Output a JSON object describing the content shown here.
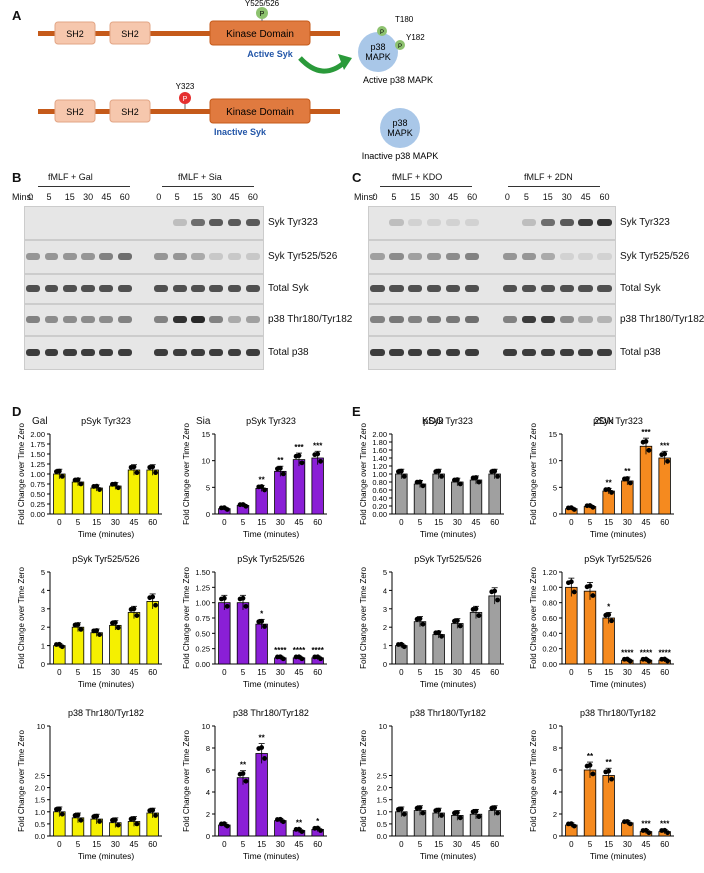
{
  "panel_labels": {
    "A": "A",
    "B": "B",
    "C": "C",
    "D": "D",
    "E": "E"
  },
  "diagram": {
    "active": {
      "sh2a": "SH2",
      "sh2b": "SH2",
      "kinase": "Kinase Domain",
      "site": "Y525/526",
      "p": "P",
      "name": "Active Syk"
    },
    "inactive": {
      "sh2a": "SH2",
      "sh2b": "SH2",
      "kinase": "Kinase Domain",
      "site": "Y323",
      "p": "P",
      "name": "Inactive Syk"
    },
    "p38_active": {
      "line1": "p38",
      "line2": "MAPK",
      "t": "T180",
      "y": "Y182",
      "p": "P",
      "name": "Active p38 MAPK"
    },
    "p38_inactive": {
      "line1": "p38",
      "line2": "MAPK",
      "name": "Inactive p38 MAPK"
    }
  },
  "blots": {
    "B": {
      "group1": "fMLF + Gal",
      "group2": "fMLF + Sia",
      "mins_label": "Mins:",
      "times": [
        "0",
        "5",
        "15",
        "30",
        "45",
        "60"
      ],
      "rows": [
        "Syk Tyr323",
        "Syk Tyr525/526",
        "Total Syk",
        "p38 Thr180/Tyr182",
        "Total p38"
      ]
    },
    "C": {
      "group1": "fMLF + KDO",
      "group2": "fMLF + 2DN",
      "mins_label": "Mins:",
      "times": [
        "0",
        "5",
        "15",
        "30",
        "45",
        "60"
      ],
      "rows": [
        "Syk Tyr323",
        "Syk Tyr525/526",
        "Total Syk",
        "p38 Thr180/Tyr182",
        "Total p38"
      ]
    }
  },
  "condition_titles": {
    "gal": "Gal",
    "sia": "Sia",
    "kdo": "KDO",
    "dn": "2DN"
  },
  "chart_data": [
    {
      "id": "D1",
      "type": "bar",
      "title": "pSyk Tyr323",
      "xlabel": "Time (minutes)",
      "ylabel": "Fold Change over Time Zero",
      "color": "#f5f000",
      "categories": [
        "0",
        "5",
        "15",
        "30",
        "45",
        "60"
      ],
      "values": [
        1.0,
        0.8,
        0.65,
        0.7,
        1.1,
        1.1
      ],
      "ylim": [
        0,
        2.0
      ],
      "yticks": [
        0.0,
        0.25,
        0.5,
        0.75,
        1.0,
        1.25,
        1.5,
        1.75,
        2.0
      ],
      "sig": [
        "",
        "",
        "",
        "",
        "",
        ""
      ]
    },
    {
      "id": "D2",
      "type": "bar",
      "title": "pSyk Tyr323",
      "xlabel": "Time (minutes)",
      "ylabel": "Fold Change over Time Zero",
      "color": "#8a1fd6",
      "categories": [
        "0",
        "5",
        "15",
        "30",
        "45",
        "60"
      ],
      "values": [
        1.0,
        1.6,
        4.8,
        8.0,
        10.2,
        10.5
      ],
      "ylim": [
        0,
        15
      ],
      "yticks": [
        0,
        5,
        10,
        15
      ],
      "sig": [
        "",
        "",
        "**",
        "**",
        "***",
        "***"
      ]
    },
    {
      "id": "D3",
      "type": "bar",
      "title": "pSyk Tyr525/526",
      "xlabel": "Time (minutes)",
      "ylabel": "Fold Change over Time Zero",
      "color": "#f5f000",
      "categories": [
        "0",
        "5",
        "15",
        "30",
        "45",
        "60"
      ],
      "values": [
        1.0,
        2.0,
        1.7,
        2.1,
        2.8,
        3.4
      ],
      "ylim": [
        0,
        5
      ],
      "yticks": [
        0,
        1,
        2,
        3,
        4,
        5
      ],
      "sig": [
        "",
        "",
        "",
        "",
        "",
        ""
      ]
    },
    {
      "id": "D4",
      "type": "bar",
      "title": "pSyk Tyr525/526",
      "xlabel": "Time (minutes)",
      "ylabel": "Fold Change over Time Zero",
      "color": "#8a1fd6",
      "categories": [
        "0",
        "5",
        "15",
        "30",
        "45",
        "60"
      ],
      "values": [
        1.0,
        1.0,
        0.65,
        0.1,
        0.1,
        0.1
      ],
      "ylim": [
        0,
        1.5
      ],
      "yticks": [
        0.0,
        0.25,
        0.5,
        0.75,
        1.0,
        1.25,
        1.5
      ],
      "sig": [
        "",
        "",
        "*",
        "****",
        "****",
        "****"
      ]
    },
    {
      "id": "D5",
      "type": "bar",
      "title": "p38 Thr180/Tyr182",
      "xlabel": "Time (minutes)",
      "ylabel": "Fold Change over Time Zero",
      "color": "#f5f000",
      "categories": [
        "0",
        "5",
        "15",
        "30",
        "45",
        "60"
      ],
      "values": [
        1.0,
        0.75,
        0.7,
        0.55,
        0.6,
        0.95
      ],
      "ylim": [
        0,
        10
      ],
      "yticks": [
        0.0,
        0.5,
        1.0,
        1.5,
        2.0,
        2.5,
        10
      ],
      "yticklabels": [
        "0.0",
        "0.5",
        "1.0",
        "1.5",
        "2.0",
        "2.5",
        "10"
      ],
      "sig": [
        "",
        "",
        "",
        "",
        "",
        ""
      ]
    },
    {
      "id": "D6",
      "type": "bar",
      "title": "p38 Thr180/Tyr182",
      "xlabel": "Time (minutes)",
      "ylabel": "Fold Change over Time Zero",
      "color": "#8a1fd6",
      "categories": [
        "0",
        "5",
        "15",
        "30",
        "45",
        "60"
      ],
      "values": [
        1.0,
        5.3,
        7.5,
        1.4,
        0.5,
        0.6
      ],
      "ylim": [
        0,
        10
      ],
      "yticks": [
        0,
        2,
        4,
        6,
        8,
        10
      ],
      "sig": [
        "",
        "**",
        "**",
        "",
        "**",
        "*"
      ]
    },
    {
      "id": "E1",
      "type": "bar",
      "title": "pSyk Tyr323",
      "xlabel": "Time (minutes)",
      "ylabel": "Fold Change over Time Zero",
      "color": "#a0a0a0",
      "categories": [
        "0",
        "5",
        "15",
        "30",
        "45",
        "60"
      ],
      "values": [
        1.0,
        0.75,
        1.0,
        0.8,
        0.85,
        1.0
      ],
      "ylim": [
        0,
        2.0
      ],
      "yticks": [
        0.0,
        0.2,
        0.4,
        0.6,
        0.8,
        1.0,
        1.2,
        1.4,
        1.6,
        1.8,
        2.0
      ],
      "sig": [
        "",
        "",
        "",
        "",
        "",
        ""
      ]
    },
    {
      "id": "E2",
      "type": "bar",
      "title": "pSyk Tyr323",
      "xlabel": "Time (minutes)",
      "ylabel": "Fold Change over Time Zero",
      "color": "#f58a1f",
      "categories": [
        "0",
        "5",
        "15",
        "30",
        "45",
        "60"
      ],
      "values": [
        1.0,
        1.4,
        4.3,
        6.2,
        12.7,
        10.5
      ],
      "ylim": [
        0,
        15
      ],
      "yticks": [
        0,
        5,
        10,
        15
      ],
      "sig": [
        "",
        "",
        "**",
        "**",
        "***",
        "***"
      ]
    },
    {
      "id": "E3",
      "type": "bar",
      "title": "pSyk Tyr525/526",
      "xlabel": "Time (minutes)",
      "ylabel": "Fold Change over Time Zero",
      "color": "#a0a0a0",
      "categories": [
        "0",
        "5",
        "15",
        "30",
        "45",
        "60"
      ],
      "values": [
        1.0,
        2.3,
        1.6,
        2.2,
        2.8,
        3.7
      ],
      "ylim": [
        0,
        5
      ],
      "yticks": [
        0,
        1,
        2,
        3,
        4,
        5
      ],
      "sig": [
        "",
        "",
        "",
        "",
        "",
        ""
      ]
    },
    {
      "id": "E4",
      "type": "bar",
      "title": "pSyk Tyr525/526",
      "xlabel": "Time (minutes)",
      "ylabel": "Fold Change over Time Zero",
      "color": "#f58a1f",
      "categories": [
        "0",
        "5",
        "15",
        "30",
        "45",
        "60"
      ],
      "values": [
        1.0,
        0.95,
        0.6,
        0.05,
        0.05,
        0.05
      ],
      "ylim": [
        0,
        1.2
      ],
      "yticks": [
        0.0,
        0.2,
        0.4,
        0.6,
        0.8,
        1.0,
        1.2
      ],
      "sig": [
        "",
        "",
        "*",
        "****",
        "****",
        "****"
      ]
    },
    {
      "id": "E5",
      "type": "bar",
      "title": "p38 Thr180/Tyr182",
      "xlabel": "Time (minutes)",
      "ylabel": "Fold Change over Time Zero",
      "color": "#a0a0a0",
      "categories": [
        "0",
        "5",
        "15",
        "30",
        "45",
        "60"
      ],
      "values": [
        1.0,
        1.05,
        0.95,
        0.85,
        0.9,
        1.05
      ],
      "ylim": [
        0,
        10
      ],
      "yticks": [
        0.0,
        0.5,
        1.0,
        1.5,
        2.0,
        2.5,
        10
      ],
      "yticklabels": [
        "0.0",
        "0.5",
        "1.0",
        "1.5",
        "2.0",
        "2.5",
        "10"
      ],
      "sig": [
        "",
        "",
        "",
        "",
        "",
        ""
      ]
    },
    {
      "id": "E6",
      "type": "bar",
      "title": "p38 Thr180/Tyr182",
      "xlabel": "Time (minutes)",
      "ylabel": "Fold Change over Time Zero",
      "color": "#f58a1f",
      "categories": [
        "0",
        "5",
        "15",
        "30",
        "45",
        "60"
      ],
      "values": [
        1.0,
        6.0,
        5.5,
        1.2,
        0.4,
        0.4
      ],
      "ylim": [
        0,
        10
      ],
      "yticks": [
        0,
        2,
        4,
        6,
        8,
        10
      ],
      "sig": [
        "",
        "**",
        "**",
        "",
        "***",
        "***"
      ]
    }
  ]
}
